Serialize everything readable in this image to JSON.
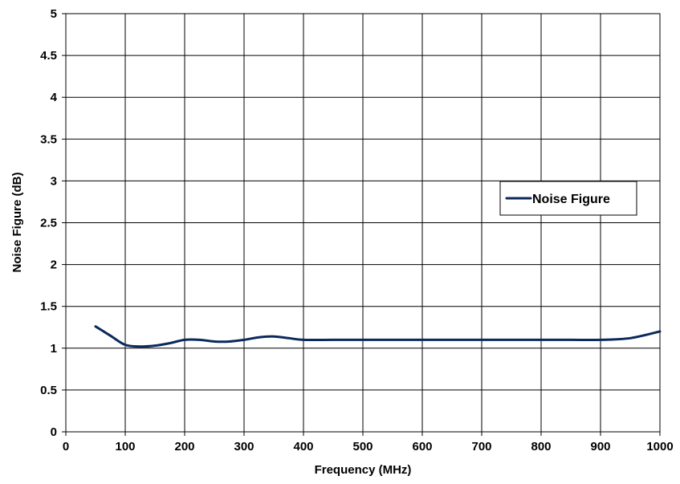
{
  "chart_data": {
    "type": "line",
    "title": "",
    "xlabel": "Frequency (MHz)",
    "ylabel": "Noise Figure (dB)",
    "xlim": [
      0,
      1000
    ],
    "ylim": [
      0,
      5
    ],
    "x_ticks": [
      "0",
      "100",
      "200",
      "300",
      "400",
      "500",
      "600",
      "700",
      "800",
      "900",
      "1000"
    ],
    "y_ticks": [
      "0",
      "0.5",
      "1",
      "1.5",
      "2",
      "2.5",
      "3",
      "3.5",
      "4",
      "4.5",
      "5"
    ],
    "grid": true,
    "legend_position": "right",
    "series": [
      {
        "name": "Noise Figure",
        "color": "#0b2a5b",
        "x": [
          50,
          75,
          100,
          125,
          150,
          175,
          200,
          225,
          250,
          275,
          300,
          325,
          350,
          375,
          400,
          450,
          500,
          600,
          700,
          800,
          850,
          900,
          950,
          1000
        ],
        "y": [
          1.26,
          1.15,
          1.04,
          1.02,
          1.03,
          1.06,
          1.1,
          1.1,
          1.08,
          1.08,
          1.1,
          1.13,
          1.14,
          1.12,
          1.1,
          1.1,
          1.1,
          1.1,
          1.1,
          1.1,
          1.1,
          1.1,
          1.12,
          1.2
        ]
      }
    ]
  }
}
